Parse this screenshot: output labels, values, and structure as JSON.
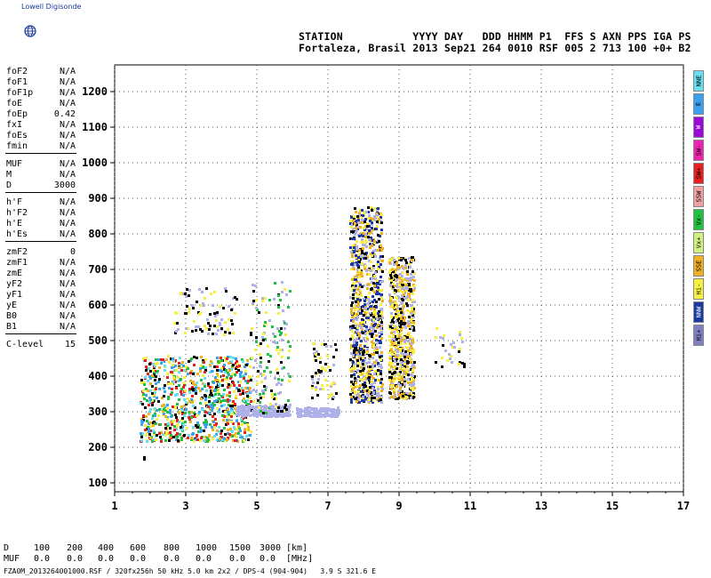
{
  "header": {
    "logo_text": "Lowell Digisonde",
    "line1": "STATION           YYYY DAY   DDD HHMM P1  FFS S AXN PPS IGA PS",
    "line2": "Fortaleza, Brasil 2013 Sep21 264 0010 RSF 005 2 713 100 +0+ B2"
  },
  "params": [
    {
      "name": "foF2",
      "value": "N/A"
    },
    {
      "name": "foF1",
      "value": "N/A"
    },
    {
      "name": "foF1p",
      "value": "N/A"
    },
    {
      "name": "foE",
      "value": "N/A"
    },
    {
      "name": "foEp",
      "value": "0.42"
    },
    {
      "name": "fxI",
      "value": "N/A"
    },
    {
      "name": "foEs",
      "value": "N/A"
    },
    {
      "name": "fmin",
      "value": "N/A"
    },
    {
      "name": "MUF",
      "value": "N/A"
    },
    {
      "name": "M",
      "value": "N/A"
    },
    {
      "name": "D",
      "value": "3000"
    },
    {
      "name": "h'F",
      "value": "N/A"
    },
    {
      "name": "h'F2",
      "value": "N/A"
    },
    {
      "name": "h'E",
      "value": "N/A"
    },
    {
      "name": "h'Es",
      "value": "N/A"
    },
    {
      "name": "zmF2",
      "value": "0"
    },
    {
      "name": "zmF1",
      "value": "N/A"
    },
    {
      "name": "zmE",
      "value": "N/A"
    },
    {
      "name": "yF2",
      "value": "N/A"
    },
    {
      "name": "yF1",
      "value": "N/A"
    },
    {
      "name": "yE",
      "value": "N/A"
    },
    {
      "name": "B0",
      "value": "N/A"
    },
    {
      "name": "B1",
      "value": "N/A"
    },
    {
      "name": "C-level",
      "value": "15"
    }
  ],
  "legend": [
    {
      "label": "NNE",
      "color": "#66e0f0"
    },
    {
      "label": "E",
      "color": "#3aa0f0"
    },
    {
      "label": "W",
      "color": "#9a0ad8"
    },
    {
      "label": "SW-",
      "color": "#f020b0"
    },
    {
      "label": "SW+",
      "color": "#e82020"
    },
    {
      "label": "SSW",
      "color": "#f0a0a0"
    },
    {
      "label": "Vx-",
      "color": "#20c040"
    },
    {
      "label": "Vx+",
      "color": "#d0f080"
    },
    {
      "label": "SSE",
      "color": "#f0b020"
    },
    {
      "label": "Hi-",
      "color": "#f8f040"
    },
    {
      "label": "NNW",
      "color": "#1a3aa0"
    },
    {
      "label": "Hi+",
      "color": "#8080c0"
    }
  ],
  "muf_table": {
    "d_label": "D",
    "muf_label": "MUF",
    "distances": [
      "100",
      "200",
      "400",
      "600",
      "800",
      "1000",
      "1500",
      "3000"
    ],
    "muf_values": [
      "0.0",
      "0.0",
      "0.0",
      "0.0",
      "0.0",
      "0.0",
      "0.0",
      "0.0"
    ],
    "d_unit": "[km]",
    "muf_unit": "[MHz]"
  },
  "footer": "FZA0M_2013264001000.RSF / 320fx256h 50 kHz 5.0 km 2x2 / DPS-4 (904-904)   3.9 S 321.6 E",
  "chart_data": {
    "type": "scatter",
    "title": "",
    "xlabel": "",
    "ylabel": "",
    "xlim": [
      1,
      17
    ],
    "ylim": [
      75,
      1275
    ],
    "x_ticks": [
      1,
      3,
      5,
      7,
      9,
      11,
      13,
      15,
      17
    ],
    "y_ticks": [
      100,
      200,
      300,
      400,
      500,
      600,
      700,
      800,
      900,
      1000,
      1100,
      1200
    ],
    "grid": true,
    "clusters": [
      {
        "name": "low-F-echoes",
        "x_range": [
          1.7,
          4.8
        ],
        "y_range": [
          220,
          460
        ],
        "colors": [
          "#e82020",
          "#66e0f0",
          "#000000",
          "#3aa0f0",
          "#f0b020",
          "#f8f040",
          "#20c040"
        ],
        "density": 900
      },
      {
        "name": "low-baseline",
        "x_range": [
          4.4,
          5.9
        ],
        "y_range": [
          290,
          320
        ],
        "colors": [
          "#b0b0e8"
        ],
        "density": 260
      },
      {
        "name": "spread-at-3.5-4",
        "x_range": [
          2.6,
          4.4
        ],
        "y_range": [
          520,
          650
        ],
        "colors": [
          "#b0b0e8",
          "#f8f040",
          "#000000"
        ],
        "density": 90
      },
      {
        "name": "mid-traces",
        "x_range": [
          4.8,
          5.9
        ],
        "y_range": [
          300,
          670
        ],
        "colors": [
          "#b0b0e8",
          "#000000",
          "#f8f040",
          "#20c040"
        ],
        "density": 160
      },
      {
        "name": "baseline-6-7",
        "x_range": [
          6.1,
          7.3
        ],
        "y_range": [
          290,
          315
        ],
        "colors": [
          "#b0b0e8"
        ],
        "density": 160
      },
      {
        "name": "traces-6.5-7",
        "x_range": [
          6.5,
          7.2
        ],
        "y_range": [
          340,
          500
        ],
        "colors": [
          "#b0b0e8",
          "#f8f040",
          "#000000"
        ],
        "density": 60
      },
      {
        "name": "strong-echo-8",
        "x_range": [
          7.6,
          8.5
        ],
        "y_range": [
          330,
          880
        ],
        "colors": [
          "#f8f040",
          "#b0b0e8",
          "#000000",
          "#1a3aa0",
          "#f0b020"
        ],
        "density": 1000
      },
      {
        "name": "strong-echo-9",
        "x_range": [
          8.7,
          9.4
        ],
        "y_range": [
          340,
          740
        ],
        "colors": [
          "#f8f040",
          "#b0b0e8",
          "#000000",
          "#f0b020"
        ],
        "density": 700
      },
      {
        "name": "sparse-10.5",
        "x_range": [
          10.0,
          10.9
        ],
        "y_range": [
          430,
          560
        ],
        "colors": [
          "#f8f040",
          "#000000",
          "#b0b0e8"
        ],
        "density": 30
      }
    ],
    "outliers": [
      {
        "x": 1.8,
        "y": 175,
        "color": "#000000"
      }
    ]
  }
}
